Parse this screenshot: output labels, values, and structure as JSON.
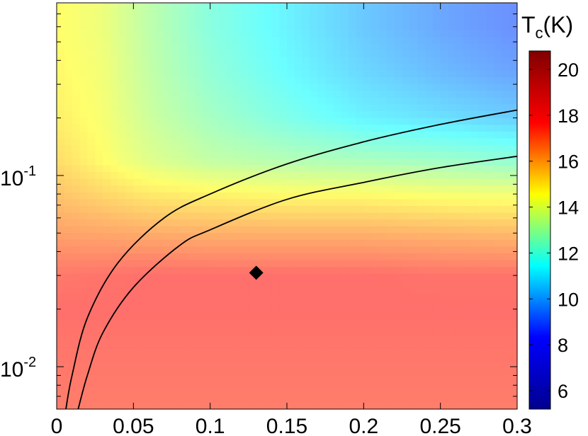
{
  "chart_data": {
    "type": "heatmap",
    "title": "",
    "xlabel": "",
    "ylabel": "",
    "xlim": [
      0,
      0.3
    ],
    "ylim": [
      0.006,
      0.8
    ],
    "yscale": "log",
    "grid": false,
    "x_ticks": [
      {
        "value": 0,
        "label": "0"
      },
      {
        "value": 0.05,
        "label": "0.05"
      },
      {
        "value": 0.1,
        "label": "0.1"
      },
      {
        "value": 0.15,
        "label": "0.15"
      },
      {
        "value": 0.2,
        "label": "0.2"
      },
      {
        "value": 0.25,
        "label": "0.25"
      },
      {
        "value": 0.3,
        "label": "0.3"
      }
    ],
    "y_ticks": [
      {
        "value": 0.01,
        "base": "10",
        "exp": "-2"
      },
      {
        "value": 0.1,
        "base": "10",
        "exp": "-1"
      }
    ],
    "colorbar": {
      "title_main": "T",
      "title_sub": "c",
      "title_rest": "(K)",
      "min": 5.2,
      "max": 20.8,
      "ticks": [
        "6",
        "8",
        "10",
        "12",
        "14",
        "16",
        "18",
        "20"
      ],
      "colormap": [
        "#00008f",
        "#0000ff",
        "#00ffff",
        "#ffff00",
        "#ff0000",
        "#800000"
      ]
    },
    "heatmap_field": {
      "x": [
        0,
        0.03,
        0.06,
        0.1,
        0.15,
        0.2,
        0.25,
        0.3
      ],
      "y": [
        0.006,
        0.01,
        0.02,
        0.03,
        0.05,
        0.08,
        0.12,
        0.2,
        0.35,
        0.6,
        0.8
      ],
      "tc": [
        [
          17.3,
          17.3,
          17.3,
          17.3,
          17.3,
          17.3,
          17.3,
          17.3
        ],
        [
          17.4,
          17.4,
          17.4,
          17.4,
          17.4,
          17.4,
          17.4,
          17.4
        ],
        [
          17.6,
          17.6,
          17.6,
          17.6,
          17.6,
          17.6,
          17.6,
          17.6
        ],
        [
          17.4,
          17.5,
          17.6,
          17.6,
          17.6,
          17.6,
          17.5,
          17.5
        ],
        [
          16.5,
          16.4,
          16.3,
          16.2,
          16.2,
          16.2,
          16.1,
          16.0
        ],
        [
          15.8,
          15.4,
          15.0,
          14.8,
          14.6,
          14.6,
          14.4,
          14.3
        ],
        [
          15.3,
          14.6,
          13.9,
          13.3,
          13.0,
          12.8,
          12.6,
          12.3
        ],
        [
          14.9,
          14.4,
          13.5,
          12.7,
          11.9,
          11.2,
          10.8,
          10.4
        ],
        [
          14.7,
          14.3,
          13.3,
          12.3,
          11.4,
          10.6,
          10.0,
          9.5
        ],
        [
          14.6,
          14.2,
          13.2,
          12.1,
          11.2,
          10.3,
          9.6,
          9.1
        ],
        [
          14.6,
          14.2,
          13.2,
          12.1,
          11.2,
          10.3,
          9.6,
          9.1
        ]
      ]
    },
    "series": [
      {
        "x": [
          0.006,
          0.01,
          0.02,
          0.04,
          0.07,
          0.1,
          0.15,
          0.2,
          0.25,
          0.3
        ],
        "y": [
          0.006,
          0.009,
          0.018,
          0.035,
          0.06,
          0.08,
          0.115,
          0.15,
          0.185,
          0.22
        ]
      },
      {
        "x": [
          0.014,
          0.02,
          0.03,
          0.05,
          0.08,
          0.1,
          0.15,
          0.2,
          0.25,
          0.3
        ],
        "y": [
          0.006,
          0.009,
          0.015,
          0.026,
          0.043,
          0.052,
          0.075,
          0.092,
          0.11,
          0.126
        ]
      }
    ],
    "marker": {
      "x": 0.13,
      "y": 0.031,
      "shape": "diamond"
    }
  }
}
